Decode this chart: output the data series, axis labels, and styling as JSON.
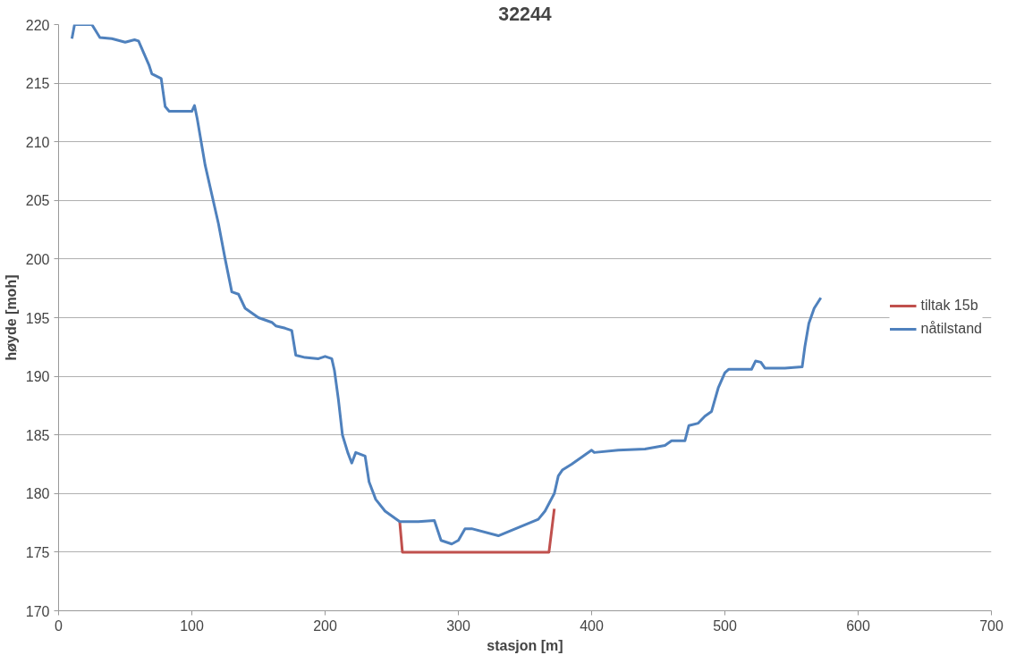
{
  "chart_data": {
    "type": "line",
    "title": "32244",
    "xlabel": "stasjon [m]",
    "ylabel": "høyde [moh]",
    "xlim": [
      0,
      700
    ],
    "xticks": [
      0,
      100,
      200,
      300,
      400,
      500,
      600,
      700
    ],
    "ylim": [
      170,
      220
    ],
    "yticks": [
      170,
      175,
      180,
      185,
      190,
      195,
      200,
      205,
      210,
      215,
      220
    ],
    "grid": "y",
    "legend": "right",
    "marker": "none",
    "line_style": "solid",
    "series": [
      {
        "name": "tiltak 15b",
        "color": "#c0504d",
        "x": [
          256,
          258,
          368,
          372
        ],
        "values": [
          177.6,
          175,
          175,
          178.7
        ]
      },
      {
        "name": "nåtilstand",
        "color": "#4f81bd",
        "x": [
          10,
          12,
          25,
          31,
          40,
          50,
          57,
          60,
          68,
          70,
          77,
          80,
          83,
          100,
          102,
          104,
          110,
          120,
          125,
          130,
          135,
          140,
          150,
          160,
          163,
          170,
          175,
          178,
          185,
          195,
          200,
          205,
          207,
          210,
          213,
          217,
          220,
          223,
          230,
          233,
          238,
          245,
          256,
          270,
          282,
          287,
          295,
          300,
          305,
          310,
          330,
          345,
          360,
          365,
          372,
          375,
          378,
          385,
          395,
          400,
          402,
          420,
          440,
          455,
          460,
          470,
          473,
          480,
          485,
          490,
          495,
          500,
          503,
          510,
          520,
          523,
          527,
          530,
          545,
          558,
          560,
          563,
          567,
          572
        ],
        "values": [
          218.8,
          220,
          220,
          218.9,
          218.8,
          218.5,
          218.7,
          218.6,
          216.5,
          215.8,
          215.4,
          213,
          212.6,
          212.6,
          213.1,
          212,
          208,
          203,
          200,
          197.2,
          197,
          195.8,
          195,
          194.6,
          194.3,
          194.1,
          193.9,
          191.8,
          191.6,
          191.5,
          191.7,
          191.5,
          190.5,
          188,
          185,
          183.5,
          182.6,
          183.5,
          183.2,
          181,
          179.5,
          178.5,
          177.6,
          177.6,
          177.7,
          176,
          175.7,
          176,
          177,
          177,
          176.4,
          177.1,
          177.8,
          178.5,
          180,
          181.5,
          182,
          182.5,
          183.3,
          183.7,
          183.5,
          183.7,
          183.8,
          184.1,
          184.5,
          184.5,
          185.8,
          186,
          186.6,
          187,
          189,
          190.3,
          190.6,
          190.6,
          190.6,
          191.3,
          191.2,
          190.7,
          190.7,
          190.8,
          192.5,
          194.5,
          195.8,
          196.7
        ]
      }
    ]
  }
}
